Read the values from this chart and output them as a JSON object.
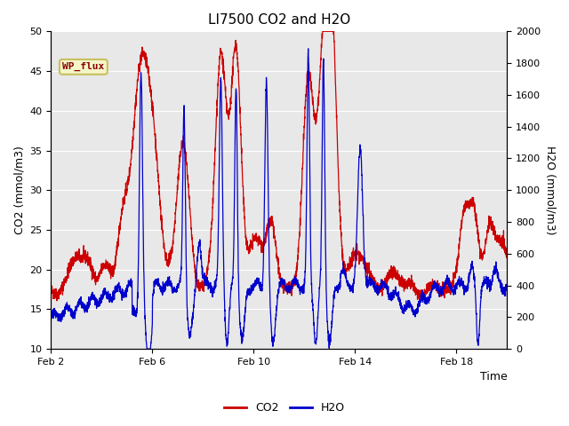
{
  "title": "LI7500 CO2 and H2O",
  "xlabel": "Time",
  "ylabel_left": "CO2 (mmol/m3)",
  "ylabel_right": "H2O (mmol/m3)",
  "ylim_left": [
    10,
    50
  ],
  "ylim_right": [
    0,
    2000
  ],
  "yticks_left": [
    10,
    15,
    20,
    25,
    30,
    35,
    40,
    45,
    50
  ],
  "yticks_right": [
    0,
    200,
    400,
    600,
    800,
    1000,
    1200,
    1400,
    1600,
    1800,
    2000
  ],
  "xtick_labels": [
    "Feb 2",
    "Feb 6",
    "Feb 10",
    "Feb 14",
    "Feb 18"
  ],
  "xtick_positions": [
    2,
    6,
    10,
    14,
    18
  ],
  "xlim": [
    2,
    20
  ],
  "annotation_text": "WP_flux",
  "bg_color": "#e8e8e8",
  "line_color_co2": "#cc0000",
  "line_color_h2o": "#0000cc",
  "legend_co2": "CO2",
  "legend_h2o": "H2O",
  "title_fontsize": 11,
  "axis_fontsize": 9,
  "tick_fontsize": 8,
  "legend_fontsize": 9
}
